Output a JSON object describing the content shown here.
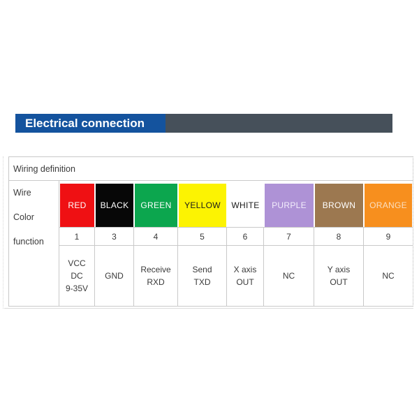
{
  "header": {
    "title": "Electrical connection",
    "accent_color": "#14539E",
    "bar_color": "#46505A"
  },
  "table": {
    "caption": "Wiring definition",
    "row_labels": [
      "Wire",
      "Color",
      "function"
    ],
    "border_color": "#C9C9C9",
    "columns": [
      {
        "color_name": "RED",
        "swatch_color": "#EF1013",
        "label_color": "#FFFFFF",
        "pin": "1",
        "function_lines": [
          "VCC",
          "DC",
          "9-35V"
        ]
      },
      {
        "color_name": "BLACK",
        "swatch_color": "#070707",
        "label_color": "#FFFFFF",
        "pin": "3",
        "function_lines": [
          "GND"
        ]
      },
      {
        "color_name": "GREEN",
        "swatch_color": "#0CA64E",
        "label_color": "#FFFFFF",
        "pin": "4",
        "function_lines": [
          "Receive",
          "RXD"
        ]
      },
      {
        "color_name": "YELLOW",
        "swatch_color": "#FCF302",
        "label_color": "#1A1A1A",
        "pin": "5",
        "function_lines": [
          "Send",
          "TXD"
        ]
      },
      {
        "color_name": "WHITE",
        "swatch_color": "#FFFFFF",
        "label_color": "#1A1A1A",
        "pin": "6",
        "function_lines": [
          "X axis",
          "OUT"
        ]
      },
      {
        "color_name": "PURPLE",
        "swatch_color": "#AE92D6",
        "label_color": "#F3EDFC",
        "pin": "7",
        "function_lines": [
          "NC"
        ]
      },
      {
        "color_name": "BROWN",
        "swatch_color": "#9C7850",
        "label_color": "#FFFFFF",
        "pin": "8",
        "function_lines": [
          "Y axis",
          "OUT"
        ]
      },
      {
        "color_name": "ORANGE",
        "swatch_color": "#F78F1E",
        "label_color": "#FBDFC0",
        "pin": "9",
        "function_lines": [
          "NC"
        ]
      }
    ]
  }
}
